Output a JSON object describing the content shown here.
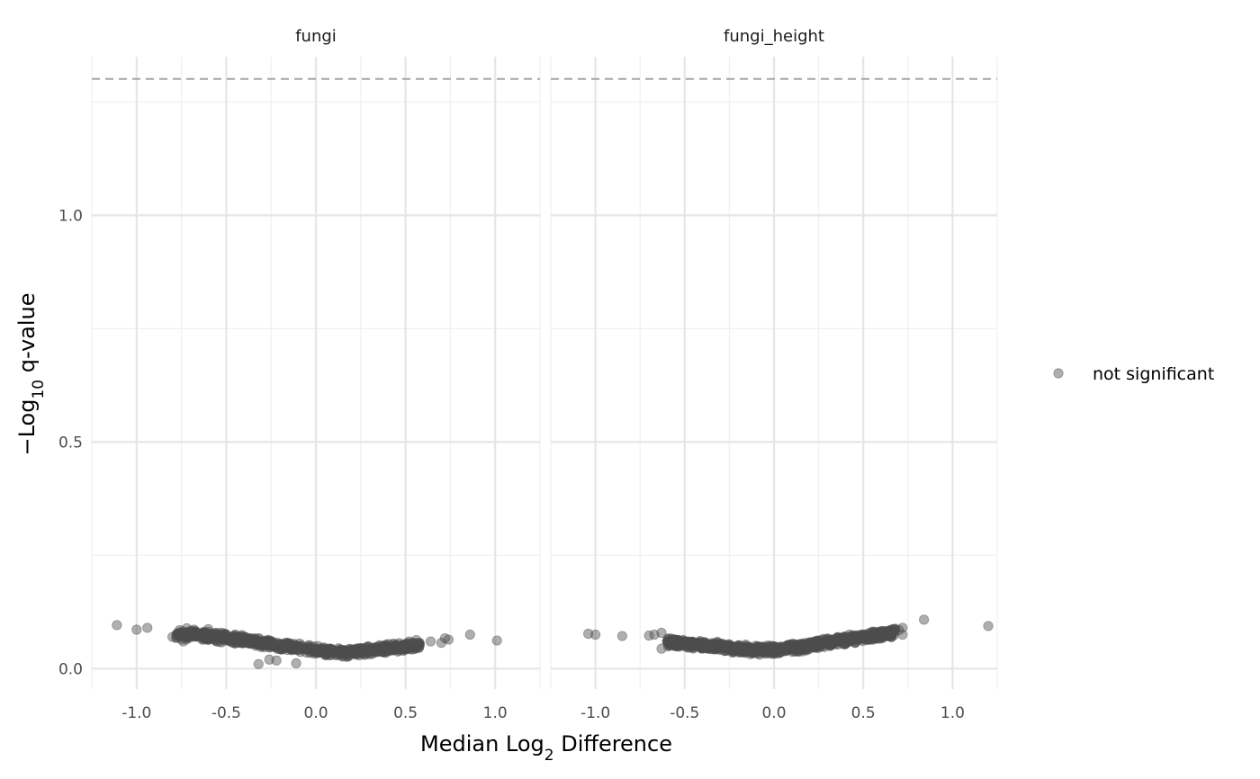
{
  "chart_data": {
    "type": "scatter",
    "title": "",
    "xlabel": {
      "prefix": "Median Log",
      "subscript": "2",
      "suffix": " Difference"
    },
    "ylabel": {
      "prefix": "−Log",
      "subscript": "10",
      "suffix": " q-value"
    },
    "xlim": [
      -1.25,
      1.25
    ],
    "ylim": [
      -0.045,
      1.35
    ],
    "x_ticks": [
      -1.0,
      -0.5,
      0.0,
      0.5,
      1.0
    ],
    "x_tick_labels": [
      "-1.0",
      "-0.5",
      "0.0",
      "0.5",
      "1.0"
    ],
    "y_ticks": [
      0.0,
      0.5,
      1.0
    ],
    "y_tick_labels": [
      "0.0",
      "0.5",
      "1.0"
    ],
    "threshold_line": {
      "y": 1.301,
      "style": "dashed"
    },
    "grid": true,
    "legend": {
      "position": "right",
      "entries": [
        {
          "label": "not significant",
          "color": "#4d4d4d"
        }
      ]
    },
    "point_color": "#4d4d4d",
    "panels": [
      {
        "title": "fungi",
        "outliers": [
          {
            "x": -1.11,
            "y": 0.096
          },
          {
            "x": -1.0,
            "y": 0.086
          },
          {
            "x": -0.94,
            "y": 0.09
          },
          {
            "x": -0.8,
            "y": 0.07
          },
          {
            "x": -0.76,
            "y": 0.085
          },
          {
            "x": -0.74,
            "y": 0.06
          },
          {
            "x": -0.72,
            "y": 0.089
          },
          {
            "x": -0.7,
            "y": 0.083
          },
          {
            "x": -0.68,
            "y": 0.086
          },
          {
            "x": -0.65,
            "y": 0.078
          },
          {
            "x": -0.6,
            "y": 0.087
          },
          {
            "x": -0.32,
            "y": 0.01
          },
          {
            "x": -0.26,
            "y": 0.02
          },
          {
            "x": -0.22,
            "y": 0.018
          },
          {
            "x": -0.11,
            "y": 0.012
          },
          {
            "x": 0.52,
            "y": 0.06
          },
          {
            "x": 0.56,
            "y": 0.063
          },
          {
            "x": 0.64,
            "y": 0.06
          },
          {
            "x": 0.7,
            "y": 0.057
          },
          {
            "x": 0.72,
            "y": 0.067
          },
          {
            "x": 0.74,
            "y": 0.064
          },
          {
            "x": 0.86,
            "y": 0.075
          },
          {
            "x": 1.01,
            "y": 0.062
          }
        ],
        "band": {
          "x_range": [
            -0.78,
            0.58
          ],
          "center": [
            [
              -0.78,
              0.075
            ],
            [
              -0.6,
              0.072
            ],
            [
              -0.4,
              0.063
            ],
            [
              -0.2,
              0.052
            ],
            [
              0.0,
              0.041
            ],
            [
              0.15,
              0.036
            ],
            [
              0.3,
              0.04
            ],
            [
              0.45,
              0.047
            ],
            [
              0.58,
              0.052
            ]
          ],
          "spread": 0.011,
          "count": 850,
          "seed": 7
        }
      },
      {
        "title": "fungi_height",
        "outliers": [
          {
            "x": -1.04,
            "y": 0.077
          },
          {
            "x": -1.0,
            "y": 0.075
          },
          {
            "x": -0.85,
            "y": 0.072
          },
          {
            "x": -0.7,
            "y": 0.073
          },
          {
            "x": -0.67,
            "y": 0.075
          },
          {
            "x": -0.63,
            "y": 0.079
          },
          {
            "x": -0.63,
            "y": 0.044
          },
          {
            "x": -0.59,
            "y": 0.056
          },
          {
            "x": -0.56,
            "y": 0.065
          },
          {
            "x": 0.62,
            "y": 0.08
          },
          {
            "x": 0.66,
            "y": 0.075
          },
          {
            "x": 0.68,
            "y": 0.088
          },
          {
            "x": 0.7,
            "y": 0.085
          },
          {
            "x": 0.72,
            "y": 0.09
          },
          {
            "x": 0.72,
            "y": 0.075
          },
          {
            "x": 0.84,
            "y": 0.108
          },
          {
            "x": 1.2,
            "y": 0.094
          }
        ],
        "band": {
          "x_range": [
            -0.6,
            0.68
          ],
          "center": [
            [
              -0.6,
              0.06
            ],
            [
              -0.4,
              0.052
            ],
            [
              -0.2,
              0.044
            ],
            [
              -0.05,
              0.04
            ],
            [
              0.0,
              0.041
            ],
            [
              0.15,
              0.048
            ],
            [
              0.3,
              0.058
            ],
            [
              0.45,
              0.066
            ],
            [
              0.6,
              0.075
            ],
            [
              0.68,
              0.08
            ]
          ],
          "spread": 0.011,
          "count": 900,
          "seed": 13
        }
      }
    ]
  }
}
